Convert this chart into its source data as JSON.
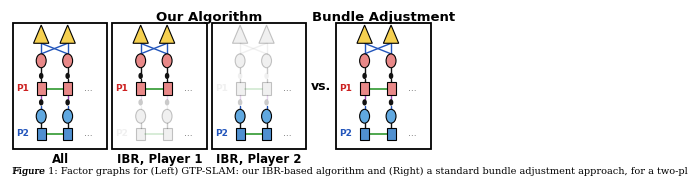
{
  "title_left": "Our Algorithm",
  "title_right": "Bundle Adjustment",
  "vs_text": "vs.",
  "labels_bottom": [
    "All",
    "IBR, Player 1",
    "IBR, Player 2"
  ],
  "caption": "1: Factor graphs for (Left) GTP-SLAM: our IBR-based algorithm and (Right) a standard bundle adjustment approach, for a two-pl",
  "caption_prefix": "Figure ",
  "bg_color": "#ffffff",
  "node_triangle_color": "#f5d050",
  "node_circle_p1_color": "#e88888",
  "node_circle_p2_color": "#60a8e0",
  "node_square_p1_color": "#e88888",
  "node_square_p2_color": "#5090d0",
  "edge_blue_color": "#2255bb",
  "edge_green_color": "#40a040",
  "edge_black_color": "#111111",
  "edge_purple_color": "#9040b0",
  "p1_label_color": "#cc2020",
  "p2_label_color": "#2255bb",
  "gray_color": "#bbbbbb",
  "caption_fontsize": 7.0,
  "label_fontsize": 8.5,
  "title_fontsize": 9.5
}
